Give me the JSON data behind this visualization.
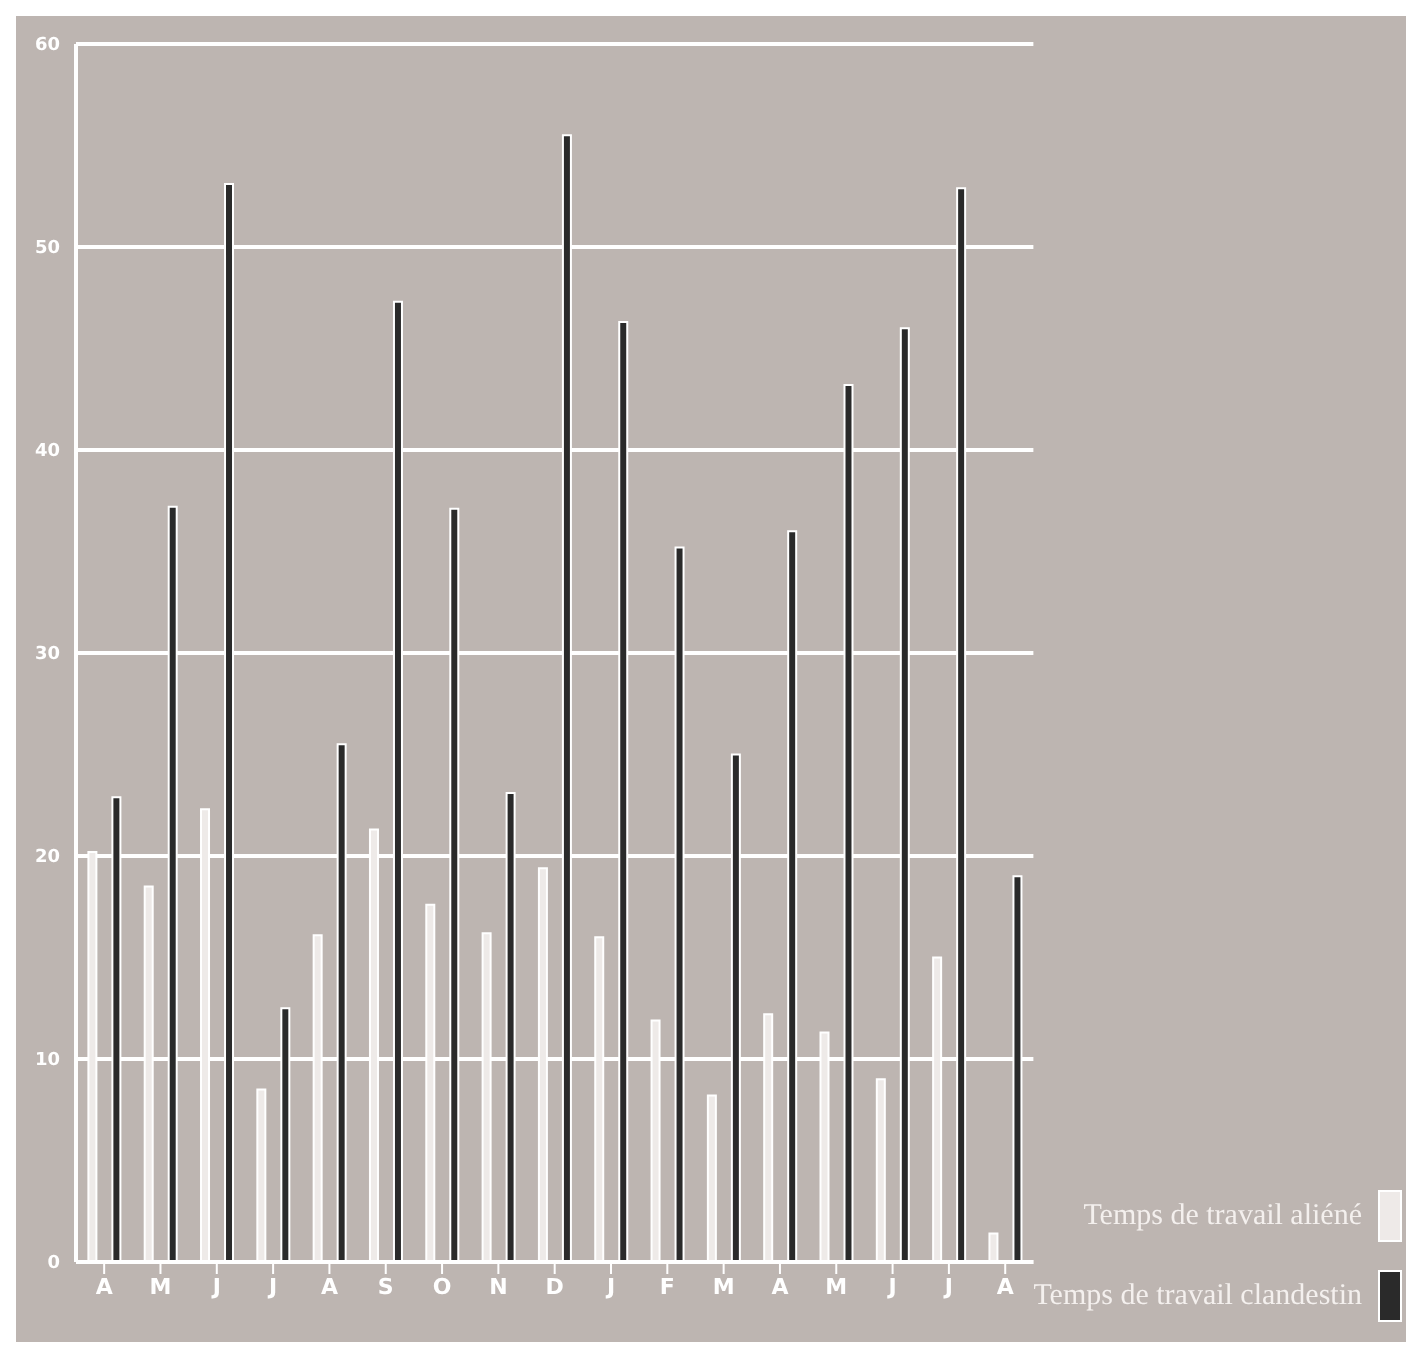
{
  "chart_data": {
    "type": "bar",
    "categories": [
      "A",
      "M",
      "J",
      "J",
      "A",
      "S",
      "O",
      "N",
      "D",
      "J",
      "F",
      "M",
      "A",
      "M",
      "J",
      "J",
      "A"
    ],
    "series": [
      {
        "name": "Temps de travail aliéné",
        "color": "#eeeae8",
        "values": [
          20.2,
          18.5,
          22.3,
          8.5,
          16.1,
          21.3,
          17.6,
          16.2,
          19.4,
          16.0,
          11.9,
          8.2,
          12.2,
          11.3,
          9.0,
          15.0,
          1.4
        ]
      },
      {
        "name": "Temps de travail clandestin",
        "color": "#2a2a2a",
        "values": [
          22.9,
          37.2,
          53.1,
          12.5,
          25.5,
          47.3,
          37.1,
          23.1,
          55.5,
          46.3,
          35.2,
          25.0,
          36.0,
          43.2,
          46.0,
          52.9,
          19.0
        ]
      }
    ],
    "ylim": [
      0,
      60
    ],
    "yticks": [
      0,
      10,
      20,
      30,
      40,
      50,
      60
    ],
    "grid": "y",
    "legend": "bottom right"
  }
}
